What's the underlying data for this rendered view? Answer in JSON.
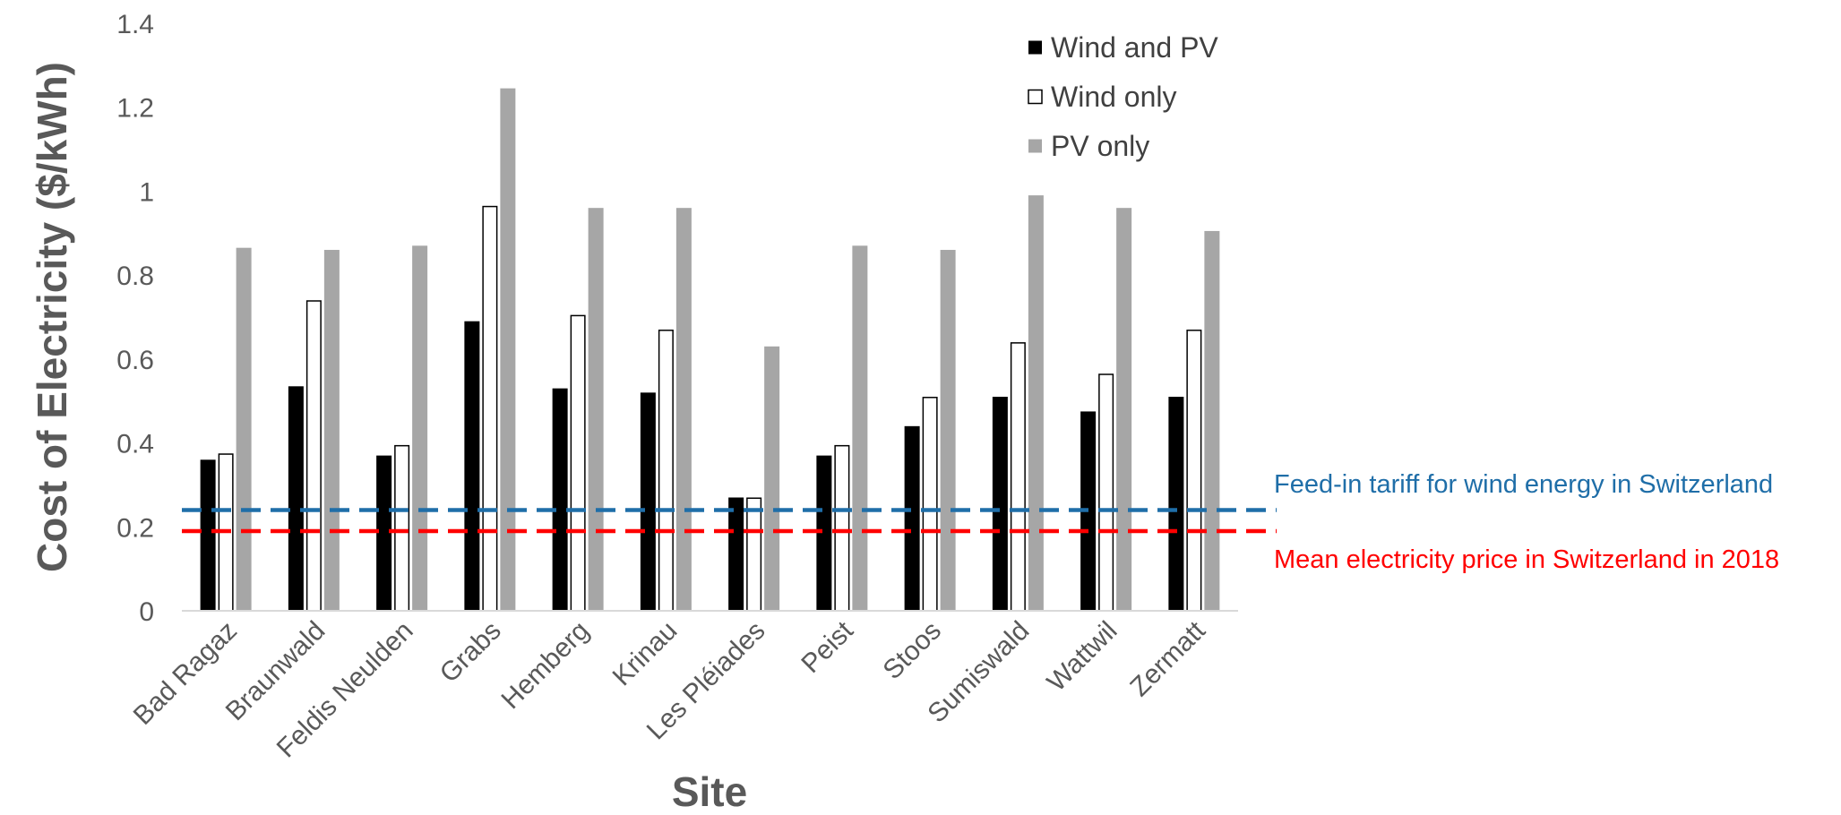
{
  "chart_data": {
    "type": "bar",
    "title": "",
    "xlabel": "Site",
    "ylabel": "Cost of Electricity ($/kWh)",
    "ylim": [
      0,
      1.4
    ],
    "yticks": [
      0,
      0.2,
      0.4,
      0.6,
      0.8,
      1,
      1.2,
      1.4
    ],
    "ytick_labels": [
      "0",
      "0.2",
      "0.4",
      "0.6",
      "0.8",
      "1",
      "1.2",
      "1.4"
    ],
    "grid": false,
    "legend_position": "top-right",
    "categories": [
      "Bad Ragaz",
      "Braunwald",
      "Feldis Neulden",
      "Grabs",
      "Hemberg",
      "Krinau",
      "Les Pléiades",
      "Peist",
      "Stoos",
      "Sumiswald",
      "Wattwil",
      "Zermatt"
    ],
    "series": [
      {
        "name": "Wind and PV",
        "color": "#000000",
        "style": "filled",
        "values": [
          0.36,
          0.535,
          0.37,
          0.69,
          0.53,
          0.52,
          0.27,
          0.37,
          0.44,
          0.51,
          0.475,
          0.51
        ]
      },
      {
        "name": "Wind only",
        "color": "#ffffff",
        "style": "outlined",
        "values": [
          0.375,
          0.74,
          0.395,
          0.965,
          0.705,
          0.67,
          0.27,
          0.395,
          0.51,
          0.64,
          0.565,
          0.67
        ]
      },
      {
        "name": "PV only",
        "color": "#a6a6a6",
        "style": "filled",
        "values": [
          0.865,
          0.86,
          0.87,
          1.245,
          0.96,
          0.96,
          0.63,
          0.87,
          0.86,
          0.99,
          0.96,
          0.905
        ]
      }
    ],
    "reference_lines": [
      {
        "label": "Feed-in tariff for wind energy in Switzerland",
        "value": 0.24,
        "color": "#1f6ea8",
        "style": "dashed"
      },
      {
        "label": "Mean electricity price in Switzerland in 2018",
        "value": 0.19,
        "color": "#ff0000",
        "style": "dashed"
      }
    ]
  }
}
